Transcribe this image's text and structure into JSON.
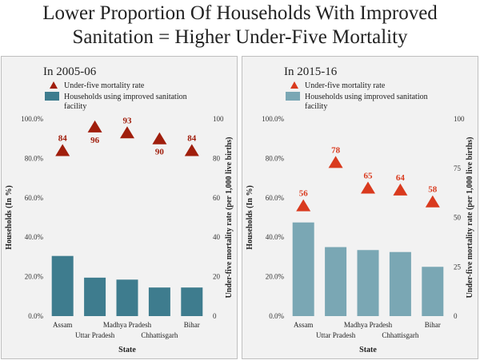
{
  "title": {
    "line1": "Lower Proportion Of Households With Improved",
    "line2": "Sanitation = Higher Under-Five Mortality"
  },
  "chart_data": [
    {
      "type": "bar",
      "panel_title": "In 2005-06",
      "categories": [
        "Assam",
        "Uttar Pradesh",
        "Madhya Pradesh",
        "Chhattisgarh",
        "Bihar"
      ],
      "series": [
        {
          "name": "Households using improved sanitation facility",
          "type": "bar",
          "axis": "left",
          "values": [
            30.5,
            19.5,
            18.5,
            14.5,
            14.5
          ],
          "color": "#3e7c8e"
        },
        {
          "name": "Under-five mortality rate",
          "type": "marker",
          "axis": "right",
          "values": [
            84,
            96,
            93,
            90,
            84
          ],
          "color": "#a01e0c"
        }
      ],
      "xlabel": "State",
      "ylabel_left": "Households (In %)",
      "ylabel_right": "Under-five mortality rate (per 1,000 live births)",
      "ylim_left": [
        0,
        100
      ],
      "yticks_left": [
        "0.0%",
        "20.0%",
        "40.0%",
        "60.0%",
        "80.0%",
        "100.0%"
      ],
      "ylim_right": [
        0,
        100
      ],
      "yticks_right": [
        "0",
        "20",
        "40",
        "60",
        "80",
        "100"
      ],
      "legend": "top-left",
      "grid": false
    },
    {
      "type": "bar",
      "panel_title": "In 2015-16",
      "categories": [
        "Assam",
        "Uttar Pradesh",
        "Madhya Pradesh",
        "Chhattisgarh",
        "Bihar"
      ],
      "series": [
        {
          "name": "Households using improved sanitation facility",
          "type": "bar",
          "axis": "left",
          "values": [
            47.5,
            35,
            33.5,
            32.5,
            25
          ],
          "color": "#7aa7b4"
        },
        {
          "name": "Under-five mortality rate",
          "type": "marker",
          "axis": "right",
          "values": [
            56,
            78,
            65,
            64,
            58
          ],
          "color": "#d93a1e"
        }
      ],
      "xlabel": "State",
      "ylabel_left": "Households (In %)",
      "ylabel_right": "Under-five mortality rate (per 1,000 live births)",
      "ylim_left": [
        0,
        100
      ],
      "yticks_left": [
        "0.0%",
        "20.0%",
        "40.0%",
        "60.0%",
        "80.0%",
        "100.0%"
      ],
      "ylim_right": [
        0,
        100
      ],
      "yticks_right": [
        "0",
        "25",
        "50",
        "75",
        "100"
      ],
      "legend": "top-left",
      "grid": false
    }
  ]
}
